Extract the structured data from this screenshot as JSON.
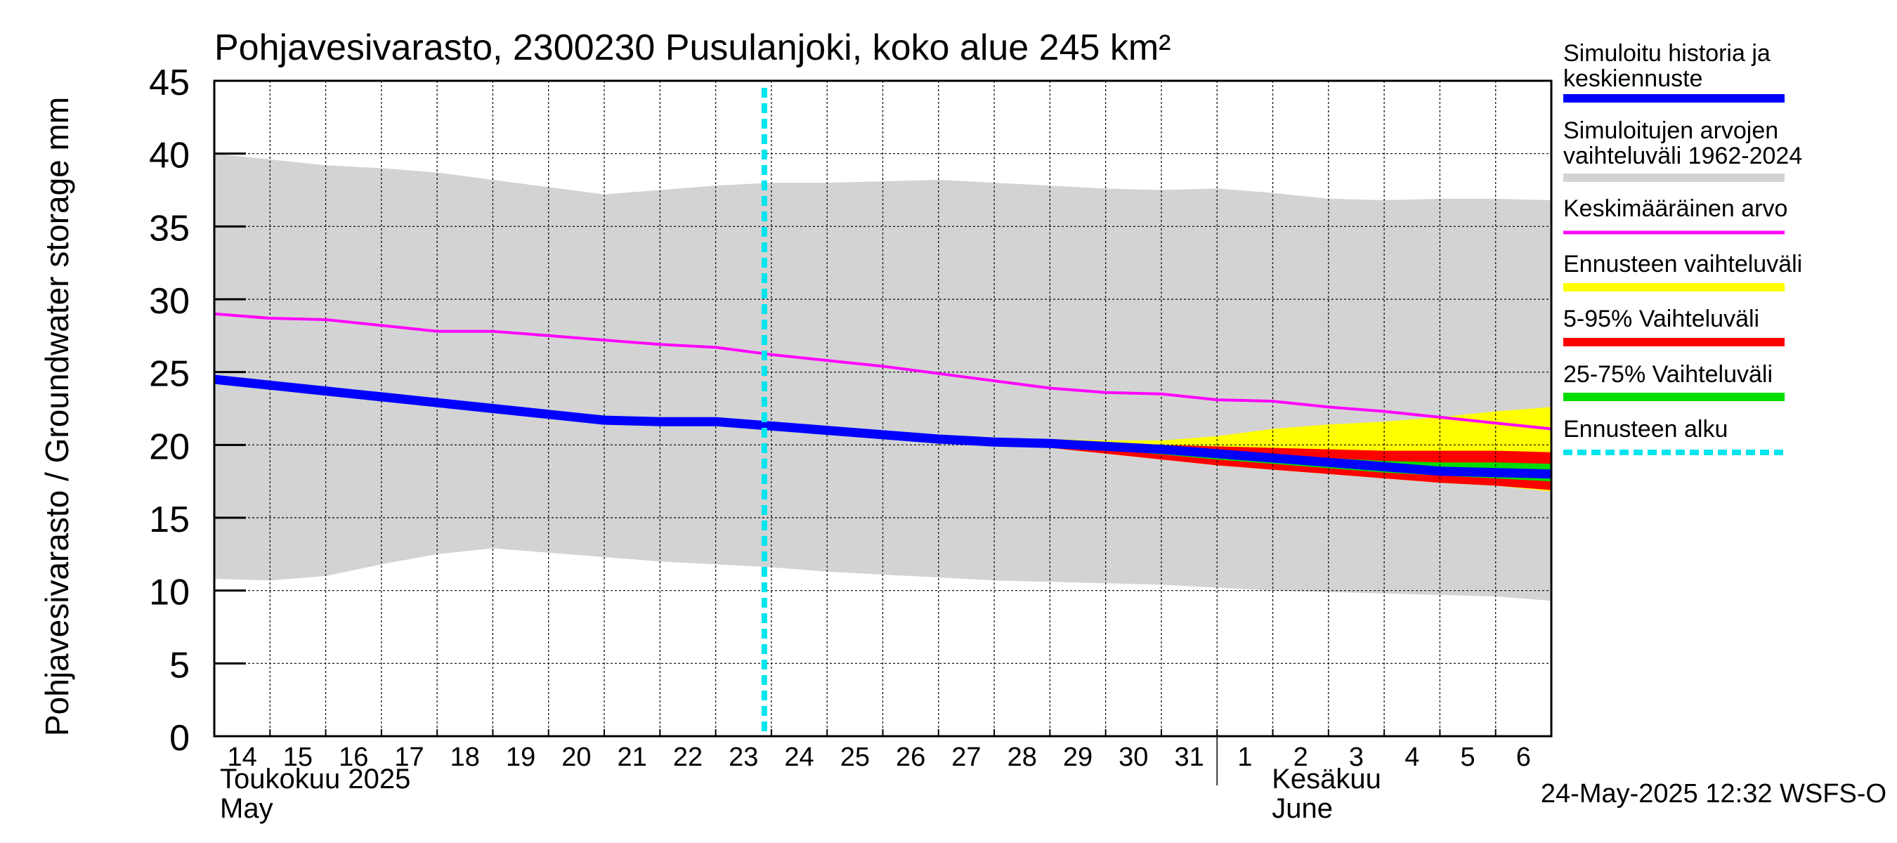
{
  "chart_data": {
    "type": "area",
    "title": "Pohjavesivarasto, 2300230 Pusulanjoki, koko alue 245 km²",
    "ylabel": "Pohjavesivarasto / Groundwater storage   mm",
    "ylim": [
      0,
      45
    ],
    "yticks": [
      0,
      5,
      10,
      15,
      20,
      25,
      30,
      35,
      40,
      45
    ],
    "xlim": [
      "2025-05-14",
      "2025-06-07"
    ],
    "x_day_labels": [
      "14",
      "15",
      "16",
      "17",
      "18",
      "19",
      "20",
      "21",
      "22",
      "23",
      "24",
      "25",
      "26",
      "27",
      "28",
      "29",
      "30",
      "31",
      "1",
      "2",
      "3",
      "4",
      "5",
      "6"
    ],
    "month_labels": [
      {
        "fi": "Toukokuu  2025",
        "en": "May"
      },
      {
        "fi": "Kesäkuu",
        "en": "June"
      }
    ],
    "grid": true,
    "legend_position": "right",
    "forecast_start": "2025-05-24",
    "colors": {
      "history_range": "#d3d3d3",
      "simulated": "#0000ff",
      "mean": "#ff00ff",
      "forecast_range": "#ffff00",
      "p5_95": "#ff0000",
      "p25_75": "#00dd00",
      "forecast_start": "#00e5ee"
    },
    "series": [
      {
        "name": "Simuloitujen arvojen vaihteluväli 1962-2024",
        "kind": "band",
        "x": [
          "2025-05-14",
          "2025-05-15",
          "2025-05-16",
          "2025-05-17",
          "2025-05-18",
          "2025-05-19",
          "2025-05-20",
          "2025-05-21",
          "2025-05-22",
          "2025-05-23",
          "2025-05-24",
          "2025-05-25",
          "2025-05-26",
          "2025-05-27",
          "2025-05-28",
          "2025-05-29",
          "2025-05-30",
          "2025-05-31",
          "2025-06-01",
          "2025-06-02",
          "2025-06-03",
          "2025-06-04",
          "2025-06-05",
          "2025-06-06",
          "2025-06-07"
        ],
        "upper": [
          40.0,
          39.6,
          39.2,
          39.0,
          38.7,
          38.2,
          37.7,
          37.2,
          37.5,
          37.8,
          38.0,
          38.0,
          38.1,
          38.2,
          38.0,
          37.8,
          37.6,
          37.5,
          37.6,
          37.3,
          36.9,
          36.8,
          36.9,
          36.9,
          36.8
        ],
        "lower": [
          10.8,
          10.7,
          11.0,
          11.8,
          12.5,
          12.9,
          12.6,
          12.3,
          12.0,
          11.8,
          11.6,
          11.3,
          11.1,
          10.9,
          10.7,
          10.6,
          10.5,
          10.4,
          10.2,
          10.0,
          9.9,
          9.8,
          9.7,
          9.6,
          9.3
        ]
      },
      {
        "name": "Keskimääräinen arvo",
        "kind": "line",
        "x": [
          "2025-05-14",
          "2025-05-15",
          "2025-05-16",
          "2025-05-17",
          "2025-05-18",
          "2025-05-19",
          "2025-05-20",
          "2025-05-21",
          "2025-05-22",
          "2025-05-23",
          "2025-05-24",
          "2025-05-25",
          "2025-05-26",
          "2025-05-27",
          "2025-05-28",
          "2025-05-29",
          "2025-05-30",
          "2025-05-31",
          "2025-06-01",
          "2025-06-02",
          "2025-06-03",
          "2025-06-04",
          "2025-06-05",
          "2025-06-06",
          "2025-06-07"
        ],
        "values": [
          29.0,
          28.7,
          28.6,
          28.2,
          27.8,
          27.8,
          27.5,
          27.2,
          26.9,
          26.7,
          26.2,
          25.8,
          25.4,
          24.9,
          24.4,
          23.9,
          23.6,
          23.5,
          23.1,
          23.0,
          22.6,
          22.3,
          21.9,
          21.5,
          21.1
        ]
      },
      {
        "name": "Ennusteen vaihteluväli",
        "kind": "band",
        "x": [
          "2025-05-27",
          "2025-05-28",
          "2025-05-29",
          "2025-05-30",
          "2025-05-31",
          "2025-06-01",
          "2025-06-02",
          "2025-06-03",
          "2025-06-04",
          "2025-06-05",
          "2025-06-06",
          "2025-06-07"
        ],
        "upper": [
          20.6,
          20.5,
          20.4,
          20.3,
          20.3,
          20.6,
          21.1,
          21.4,
          21.6,
          21.9,
          22.3,
          22.6
        ],
        "lower": [
          20.4,
          20.1,
          19.8,
          19.4,
          19.0,
          18.6,
          18.3,
          18.0,
          17.7,
          17.4,
          17.2,
          16.8
        ]
      },
      {
        "name": "5-95% Vaihteluväli",
        "kind": "band",
        "x": [
          "2025-05-27",
          "2025-05-28",
          "2025-05-29",
          "2025-05-30",
          "2025-05-31",
          "2025-06-01",
          "2025-06-02",
          "2025-06-03",
          "2025-06-04",
          "2025-06-05",
          "2025-06-06",
          "2025-06-07"
        ],
        "upper": [
          20.5,
          20.3,
          20.2,
          20.1,
          20.0,
          19.9,
          19.8,
          19.7,
          19.6,
          19.6,
          19.6,
          19.5
        ],
        "lower": [
          20.4,
          20.1,
          19.8,
          19.4,
          19.0,
          18.6,
          18.3,
          18.0,
          17.7,
          17.4,
          17.2,
          16.9
        ]
      },
      {
        "name": "25-75% Vaihteluväli",
        "kind": "band",
        "x": [
          "2025-05-27",
          "2025-05-28",
          "2025-05-29",
          "2025-05-30",
          "2025-05-31",
          "2025-06-01",
          "2025-06-02",
          "2025-06-03",
          "2025-06-04",
          "2025-06-05",
          "2025-06-06",
          "2025-06-07"
        ],
        "upper": [
          20.45,
          20.2,
          20.05,
          19.9,
          19.7,
          19.5,
          19.3,
          19.1,
          18.9,
          18.8,
          18.8,
          18.7
        ],
        "lower": [
          20.4,
          20.15,
          19.9,
          19.65,
          19.35,
          19.0,
          18.7,
          18.4,
          18.1,
          17.9,
          17.7,
          17.5
        ]
      },
      {
        "name": "Simuloitu historia ja keskiennuste",
        "kind": "line",
        "x": [
          "2025-05-14",
          "2025-05-15",
          "2025-05-16",
          "2025-05-17",
          "2025-05-18",
          "2025-05-19",
          "2025-05-20",
          "2025-05-21",
          "2025-05-22",
          "2025-05-23",
          "2025-05-24",
          "2025-05-25",
          "2025-05-26",
          "2025-05-27",
          "2025-05-28",
          "2025-05-29",
          "2025-05-30",
          "2025-05-31",
          "2025-06-01",
          "2025-06-02",
          "2025-06-03",
          "2025-06-04",
          "2025-06-05",
          "2025-06-06",
          "2025-06-07"
        ],
        "values": [
          24.5,
          24.1,
          23.7,
          23.3,
          22.9,
          22.5,
          22.1,
          21.7,
          21.6,
          21.6,
          21.3,
          21.0,
          20.7,
          20.4,
          20.2,
          20.1,
          19.9,
          19.7,
          19.4,
          19.1,
          18.8,
          18.5,
          18.2,
          18.1,
          18.0
        ]
      }
    ],
    "legend": [
      {
        "label": "Simuloitu historia ja\nkeskiennuste",
        "color": "#0000ff",
        "style": "solid"
      },
      {
        "label": "Simuloitujen arvojen\nvaihteluväli 1962-2024",
        "color": "#d3d3d3",
        "style": "solid"
      },
      {
        "label": "Keskimääräinen arvo",
        "color": "#ff00ff",
        "style": "thin"
      },
      {
        "label": "Ennusteen vaihteluväli",
        "color": "#ffff00",
        "style": "solid"
      },
      {
        "label": "5-95% Vaihteluväli",
        "color": "#ff0000",
        "style": "solid"
      },
      {
        "label": "25-75% Vaihteluväli",
        "color": "#00dd00",
        "style": "solid"
      },
      {
        "label": "Ennusteen alku",
        "color": "#00e5ee",
        "style": "dashed"
      }
    ],
    "footer": "24-May-2025 12:32 WSFS-O"
  }
}
